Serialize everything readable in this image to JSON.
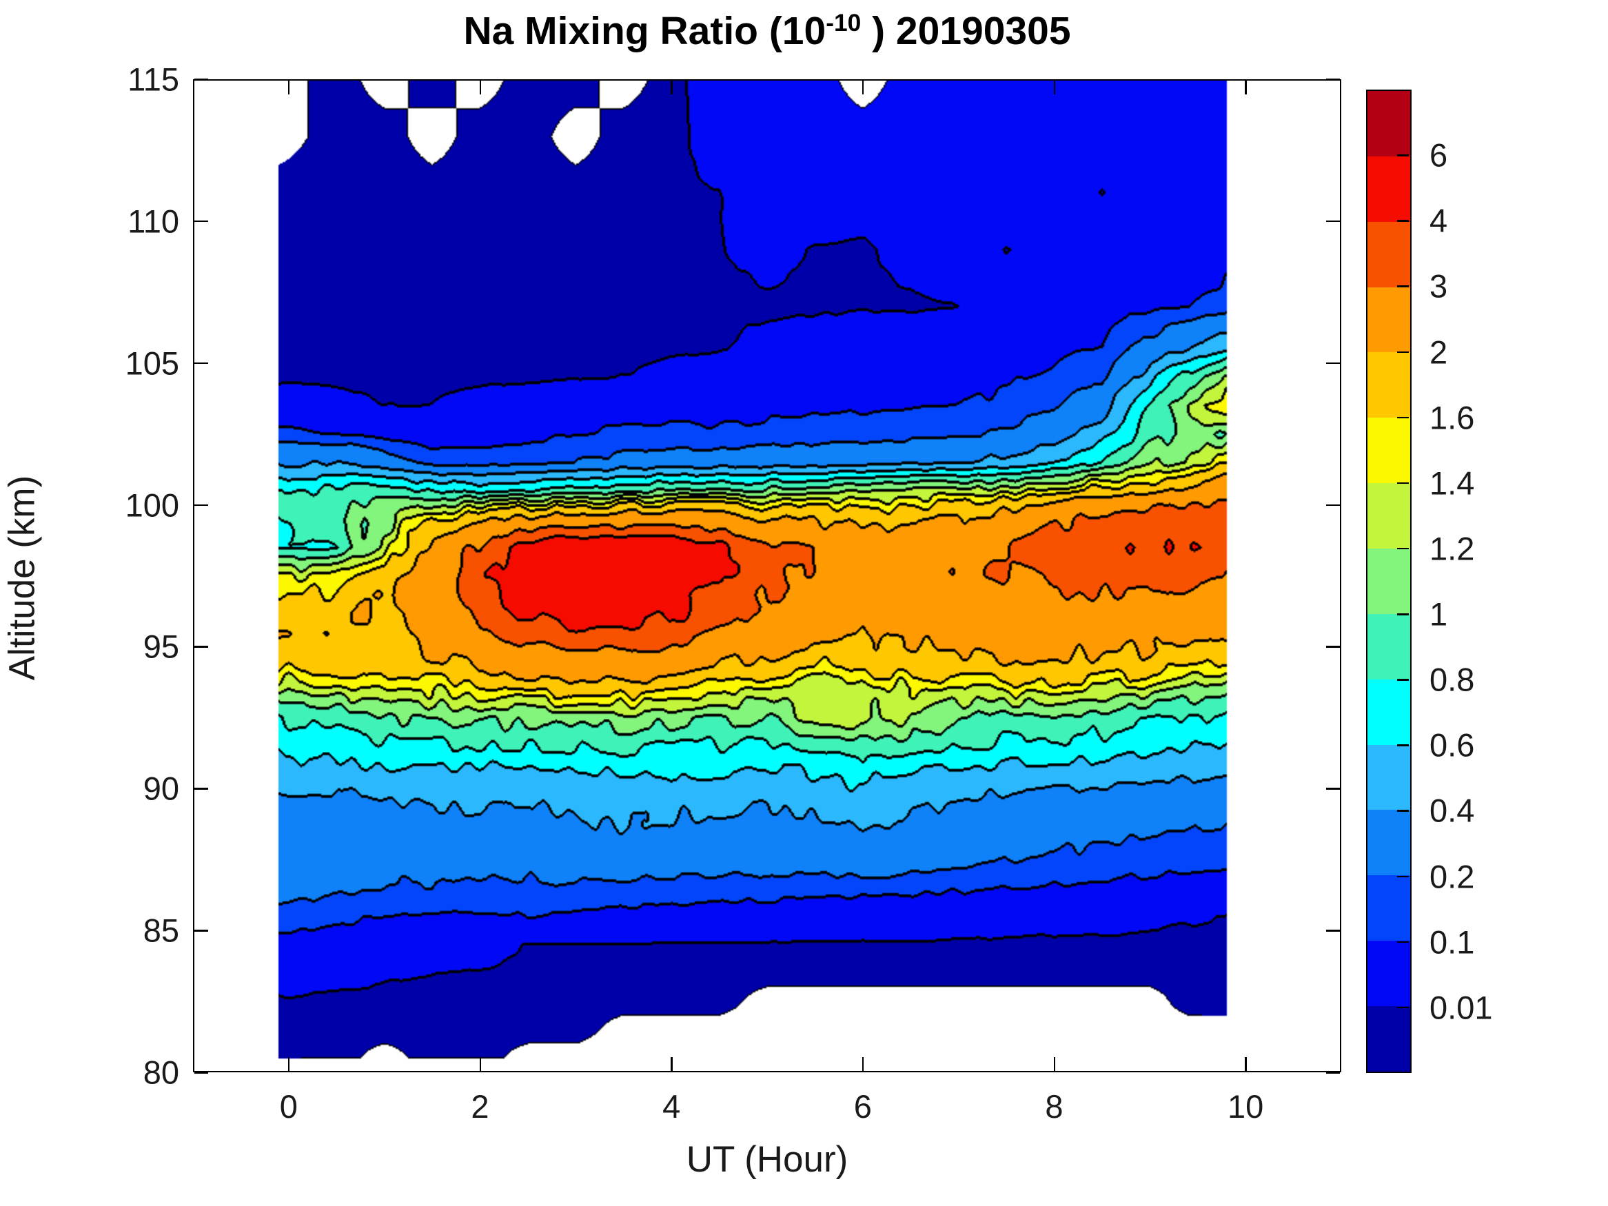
{
  "figure": {
    "title": {
      "prefix": "Na Mixing Ratio (10",
      "superscript": "-10",
      "suffix": " ) 20190305"
    }
  },
  "axes": {
    "xlabel": "UT (Hour)",
    "ylabel": "Altitude (km)",
    "xlim": [
      -1,
      11
    ],
    "ylim": [
      80,
      115
    ],
    "x_ticks": [
      {
        "value": 0,
        "label": "0"
      },
      {
        "value": 2,
        "label": "2"
      },
      {
        "value": 4,
        "label": "4"
      },
      {
        "value": 6,
        "label": "6"
      },
      {
        "value": 8,
        "label": "8"
      },
      {
        "value": 10,
        "label": "10"
      }
    ],
    "y_ticks": [
      {
        "value": 80,
        "label": "80"
      },
      {
        "value": 85,
        "label": "85"
      },
      {
        "value": 90,
        "label": "90"
      },
      {
        "value": 95,
        "label": "95"
      },
      {
        "value": 100,
        "label": "100"
      },
      {
        "value": 105,
        "label": "105"
      },
      {
        "value": 110,
        "label": "110"
      },
      {
        "value": 115,
        "label": "115"
      }
    ]
  },
  "colorbar": {
    "position": "right",
    "tick_labels": [
      "0.01",
      "0.1",
      "0.2",
      "0.4",
      "0.6",
      "0.8",
      "1",
      "1.2",
      "1.4",
      "1.6",
      "2",
      "3",
      "4",
      "6"
    ]
  },
  "chart_data": {
    "type": "heatmap",
    "style": "filled_contour",
    "title": "Na Mixing Ratio (10^-10) 20190305",
    "xlabel": "UT (Hour)",
    "ylabel": "Altitude (km)",
    "xlim": [
      -1,
      11
    ],
    "ylim": [
      80,
      115
    ],
    "legend_position": "right-colorbar",
    "grid": false,
    "levels": [
      0.01,
      0.1,
      0.2,
      0.4,
      0.6,
      0.8,
      1,
      1.2,
      1.4,
      1.6,
      2,
      3,
      4,
      6
    ],
    "band_colors": [
      "#0000A8",
      "#0008F5",
      "#0345FA",
      "#0F82FA",
      "#2CB8FC",
      "#00FFFF",
      "#3FF2B7",
      "#83F57C",
      "#C3F53C",
      "#FBF800",
      "#FFC700",
      "#FF9B00",
      "#F85200",
      "#F60B00",
      "#B40014"
    ],
    "line_color": "#000000",
    "nodata_color": "#ffffff",
    "noise": {
      "amp": 0.1,
      "fx": 7.5,
      "fy": 1.3
    },
    "x": [
      -0.1,
      0.5,
      1,
      1.5,
      2,
      2.5,
      3,
      3.5,
      4,
      4.5,
      5,
      5.5,
      6,
      6.5,
      7,
      7.5,
      8,
      8.5,
      9,
      9.4,
      9.8
    ],
    "y": [
      115,
      113,
      111,
      109,
      107,
      105.5,
      104.5,
      103.5,
      102.5,
      101.5,
      100.5,
      99.5,
      98.5,
      97.5,
      96.5,
      95.5,
      94.5,
      93.5,
      92.5,
      91.5,
      90.5,
      89.5,
      88.5,
      87.5,
      86.5,
      85.5,
      84.5,
      83.5,
      82.5,
      81.5,
      80.5
    ],
    "values": [
      [
        null,
        0.005,
        null,
        0.008,
        null,
        0.005,
        0.008,
        null,
        0.005,
        0.02,
        0.03,
        0.05,
        null,
        0.05,
        0.05,
        0.04,
        0.05,
        0.06,
        0.05,
        0.06,
        0.05
      ],
      [
        null,
        0.005,
        0.005,
        null,
        0.005,
        0.005,
        null,
        0.005,
        0.005,
        0.02,
        0.04,
        0.05,
        0.04,
        0.05,
        0.04,
        0.05,
        0.05,
        0.04,
        0.06,
        0.05,
        0.06
      ],
      [
        0.005,
        0.005,
        0.005,
        0.005,
        0.005,
        0.005,
        0.005,
        0.005,
        0.005,
        0.01,
        0.03,
        0.04,
        0.03,
        0.02,
        0.04,
        0.05,
        0.04,
        0.008,
        0.05,
        0.06,
        0.06
      ],
      [
        0.005,
        0.005,
        0.005,
        0.005,
        0.005,
        0.005,
        0.005,
        0.005,
        0.005,
        0.008,
        0.02,
        0.008,
        0.005,
        0.02,
        0.04,
        0.008,
        0.03,
        0.05,
        0.06,
        0.07,
        0.08
      ],
      [
        0.005,
        0.005,
        0.005,
        0.005,
        0.005,
        0.005,
        0.005,
        0.005,
        0.005,
        0.005,
        0.005,
        0.005,
        0.008,
        0.005,
        0.01,
        0.03,
        0.05,
        0.06,
        0.08,
        0.1,
        0.13
      ],
      [
        0.005,
        0.005,
        0.005,
        0.005,
        0.005,
        0.005,
        0.005,
        0.005,
        0.005,
        0.008,
        0.02,
        0.03,
        0.03,
        0.04,
        0.05,
        0.06,
        0.08,
        0.1,
        0.25,
        0.4,
        0.55
      ],
      [
        0.005,
        0.005,
        0.005,
        0.005,
        0.005,
        0.005,
        0.008,
        0.01,
        0.02,
        0.03,
        0.04,
        0.05,
        0.05,
        0.06,
        0.07,
        0.09,
        0.12,
        0.18,
        0.5,
        0.9,
        1.3
      ],
      [
        0.03,
        0.02,
        0.01,
        0.01,
        0.02,
        0.03,
        0.04,
        0.05,
        0.06,
        0.06,
        0.07,
        0.08,
        0.08,
        0.09,
        0.1,
        0.12,
        0.18,
        0.3,
        0.8,
        1.3,
        1.5
      ],
      [
        0.12,
        0.1,
        0.06,
        0.05,
        0.06,
        0.08,
        0.1,
        0.12,
        0.12,
        0.12,
        0.13,
        0.15,
        0.15,
        0.16,
        0.18,
        0.22,
        0.3,
        0.5,
        0.9,
        1.1,
        1.0
      ],
      [
        0.35,
        0.4,
        0.3,
        0.15,
        0.13,
        0.15,
        0.2,
        0.25,
        0.25,
        0.3,
        0.3,
        0.3,
        0.35,
        0.35,
        0.4,
        0.45,
        0.55,
        0.8,
        1.1,
        1.3,
        1.6
      ],
      [
        0.8,
        0.85,
        0.9,
        0.8,
        0.75,
        0.8,
        0.85,
        0.95,
        1.0,
        1.05,
        1.05,
        1.1,
        1.15,
        1.2,
        1.25,
        1.35,
        1.5,
        1.7,
        1.9,
        2.2,
        2.6
      ],
      [
        0.85,
        1.0,
        1.1,
        1.6,
        1.9,
        2.1,
        2.2,
        2.3,
        2.3,
        2.2,
        2.0,
        1.9,
        1.8,
        1.9,
        2.0,
        2.2,
        2.8,
        3.3,
        3.6,
        3.7,
        3.4
      ],
      [
        0.75,
        0.85,
        1.3,
        2.2,
        3.2,
        4.5,
        5.0,
        5.0,
        5.0,
        4.2,
        3.3,
        2.8,
        2.6,
        2.6,
        2.7,
        3.0,
        3.5,
        3.7,
        3.8,
        3.8,
        3.5
      ],
      [
        1.35,
        1.5,
        1.8,
        2.6,
        3.6,
        5.0,
        5.5,
        5.5,
        5.2,
        4.0,
        3.2,
        2.8,
        2.6,
        2.7,
        2.8,
        3.0,
        3.2,
        3.4,
        3.4,
        3.2,
        2.9
      ],
      [
        1.7,
        1.8,
        2.0,
        2.5,
        3.3,
        4.5,
        5.2,
        5.1,
        4.6,
        3.6,
        3.0,
        2.6,
        2.4,
        2.5,
        2.6,
        2.7,
        2.8,
        2.9,
        2.8,
        2.6,
        2.4
      ],
      [
        1.9,
        1.9,
        2.0,
        2.2,
        2.7,
        3.3,
        3.8,
        3.7,
        3.4,
        2.9,
        2.5,
        2.2,
        2.1,
        2.2,
        2.3,
        2.4,
        2.4,
        2.4,
        2.3,
        2.2,
        2.0
      ],
      [
        1.65,
        1.7,
        1.8,
        1.9,
        2.1,
        2.4,
        2.6,
        2.6,
        2.4,
        2.1,
        1.9,
        1.7,
        1.7,
        1.8,
        1.9,
        2.0,
        2.0,
        1.9,
        1.8,
        1.7,
        1.6
      ],
      [
        1.3,
        1.3,
        1.4,
        1.45,
        1.5,
        1.6,
        1.7,
        1.7,
        1.6,
        1.5,
        1.35,
        1.3,
        1.3,
        1.35,
        1.4,
        1.45,
        1.45,
        1.4,
        1.3,
        1.15,
        1.0
      ],
      [
        0.78,
        0.9,
        1.0,
        1.0,
        1.05,
        1.05,
        1.1,
        1.1,
        1.05,
        1.0,
        1.0,
        1.25,
        1.3,
        1.2,
        1.0,
        0.95,
        0.95,
        0.9,
        0.85,
        0.8,
        0.75
      ],
      [
        0.65,
        0.7,
        0.75,
        0.75,
        0.8,
        0.8,
        0.85,
        0.85,
        0.8,
        0.8,
        0.75,
        0.8,
        0.9,
        0.85,
        0.8,
        0.75,
        0.75,
        0.7,
        0.65,
        0.6,
        0.55
      ],
      [
        0.5,
        0.5,
        0.55,
        0.55,
        0.55,
        0.5,
        0.55,
        0.6,
        0.6,
        0.6,
        0.55,
        0.6,
        0.65,
        0.6,
        0.55,
        0.5,
        0.5,
        0.48,
        0.45,
        0.42,
        0.4
      ],
      [
        0.35,
        0.35,
        0.4,
        0.4,
        0.42,
        0.4,
        0.45,
        0.48,
        0.45,
        0.45,
        0.4,
        0.45,
        0.5,
        0.45,
        0.4,
        0.35,
        0.33,
        0.3,
        0.28,
        0.27,
        0.25
      ],
      [
        0.28,
        0.28,
        0.3,
        0.3,
        0.32,
        0.3,
        0.35,
        0.38,
        0.35,
        0.35,
        0.3,
        0.35,
        0.38,
        0.35,
        0.3,
        0.27,
        0.25,
        0.22,
        0.2,
        0.19,
        0.18
      ],
      [
        0.28,
        0.26,
        0.25,
        0.25,
        0.26,
        0.25,
        0.28,
        0.3,
        0.28,
        0.28,
        0.25,
        0.27,
        0.3,
        0.27,
        0.24,
        0.2,
        0.18,
        0.16,
        0.14,
        0.13,
        0.12
      ],
      [
        0.25,
        0.22,
        0.2,
        0.2,
        0.18,
        0.18,
        0.18,
        0.17,
        0.16,
        0.15,
        0.14,
        0.14,
        0.13,
        0.12,
        0.11,
        0.1,
        0.09,
        0.08,
        0.07,
        0.06,
        0.05
      ],
      [
        0.15,
        0.12,
        0.1,
        0.09,
        0.09,
        0.1,
        0.08,
        0.07,
        0.06,
        0.05,
        0.05,
        0.04,
        0.04,
        0.035,
        0.03,
        0.025,
        0.02,
        0.02,
        0.015,
        0.012,
        0.01
      ],
      [
        0.07,
        0.05,
        0.04,
        0.03,
        0.02,
        0.008,
        0.008,
        0.008,
        0.007,
        0.007,
        0.007,
        0.007,
        0.006,
        0.006,
        0.006,
        0.005,
        0.005,
        0.005,
        0.005,
        0.005,
        0.005
      ],
      [
        0.02,
        0.015,
        0.012,
        0.01,
        0.008,
        0.006,
        0.005,
        0.005,
        0.005,
        0.005,
        0.005,
        0.004,
        0.004,
        0.004,
        0.004,
        0.004,
        0.004,
        0.004,
        0.004,
        0.004,
        0.004
      ],
      [
        0.008,
        0.007,
        0.006,
        0.006,
        0.005,
        0.005,
        0.004,
        0.004,
        0.004,
        0.005,
        null,
        null,
        null,
        null,
        null,
        null,
        null,
        null,
        null,
        0.004,
        0.004
      ],
      [
        0.005,
        0.005,
        0.004,
        0.004,
        0.004,
        0.004,
        0.004,
        null,
        null,
        null,
        null,
        null,
        null,
        null,
        null,
        null,
        null,
        null,
        null,
        null,
        null
      ],
      [
        0.004,
        0.004,
        null,
        0.004,
        0.004,
        null,
        null,
        null,
        null,
        null,
        null,
        null,
        null,
        null,
        null,
        null,
        null,
        null,
        null,
        null,
        null
      ]
    ]
  }
}
